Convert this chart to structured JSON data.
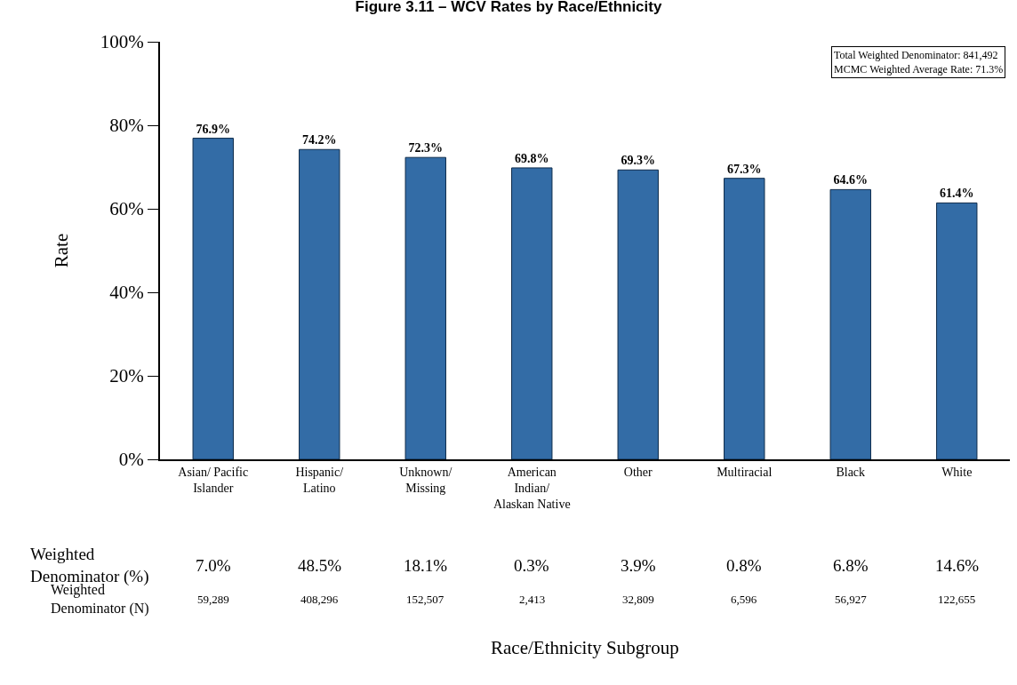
{
  "chart_data": {
    "type": "bar",
    "title": "Figure 3.11 – WCV Rates by Race/Ethnicity",
    "ylabel": "Rate",
    "categories": [
      "Asian/ Pacific Islander",
      "Hispanic/ Latino",
      "Unknown/ Missing",
      "American Indian/ Alaskan Native",
      "Other",
      "Multiracial",
      "Black",
      "White"
    ],
    "values": [
      76.9,
      74.2,
      72.3,
      69.8,
      69.3,
      67.3,
      64.6,
      61.4
    ],
    "value_labels": [
      "76.9%",
      "74.2%",
      "72.3%",
      "69.8%",
      "69.3%",
      "67.3%",
      "64.6%",
      "61.4%"
    ],
    "color": "#336ca6",
    "ylim": [
      0,
      100
    ],
    "yticks": [
      {
        "value": 0,
        "label": "0%"
      },
      {
        "value": 20,
        "label": "20%"
      },
      {
        "value": 40,
        "label": "40%"
      },
      {
        "value": 60,
        "label": "60%"
      },
      {
        "value": 80,
        "label": "80%"
      },
      {
        "value": 100,
        "label": "100%"
      }
    ],
    "grid": false,
    "annotations": [
      "Total Weighted Denominator: 841,492",
      "MCMC Weighted Average Rate: 71.3%",
      "Weighted Denominator (%)",
      "7.0%",
      "48.5%",
      "18.1%",
      "0.3%",
      "3.9%",
      "0.8%",
      "6.8%",
      "14.6%",
      "Weighted Denominator (N)",
      "59,289",
      "408,296",
      "152,507",
      "2,413",
      "32,809",
      "6,596",
      "56,927",
      "122,655",
      "Race/Ethnicity Subgroup"
    ]
  }
}
